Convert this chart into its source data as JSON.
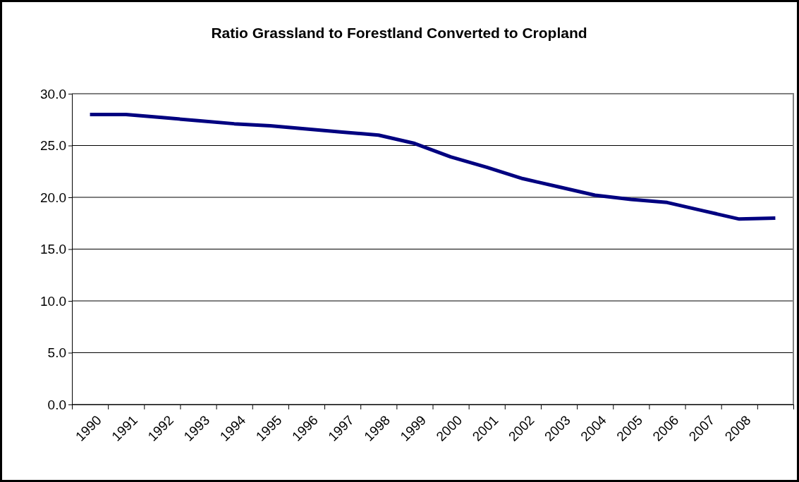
{
  "chart_data": {
    "type": "line",
    "title": "Ratio Grassland to Forestland Converted to Cropland",
    "categories": [
      "1990",
      "1991",
      "1992",
      "1993",
      "1994",
      "1995",
      "1996",
      "1997",
      "1998",
      "1999",
      "2000",
      "2001",
      "2002",
      "2003",
      "2004",
      "2005",
      "2006",
      "2007",
      "2008",
      null
    ],
    "series": [
      {
        "color": "#000080",
        "values": [
          28.0,
          28.0,
          27.7,
          27.4,
          27.1,
          26.9,
          26.6,
          26.3,
          26.0,
          25.2,
          23.9,
          22.9,
          21.8,
          21.0,
          20.2,
          19.8,
          19.5,
          18.7,
          17.9,
          18.0
        ]
      }
    ],
    "ylim": [
      0,
      30
    ],
    "yticks": [
      {
        "value": 0,
        "label": "0.0"
      },
      {
        "value": 5,
        "label": "5.0"
      },
      {
        "value": 10,
        "label": "10.0"
      },
      {
        "value": 15,
        "label": "15.0"
      },
      {
        "value": 20,
        "label": "20.0"
      },
      {
        "value": 25,
        "label": "25.0"
      },
      {
        "value": 30,
        "label": "30.0"
      }
    ],
    "grid": "y",
    "marker": "none",
    "line_style": "solid"
  }
}
